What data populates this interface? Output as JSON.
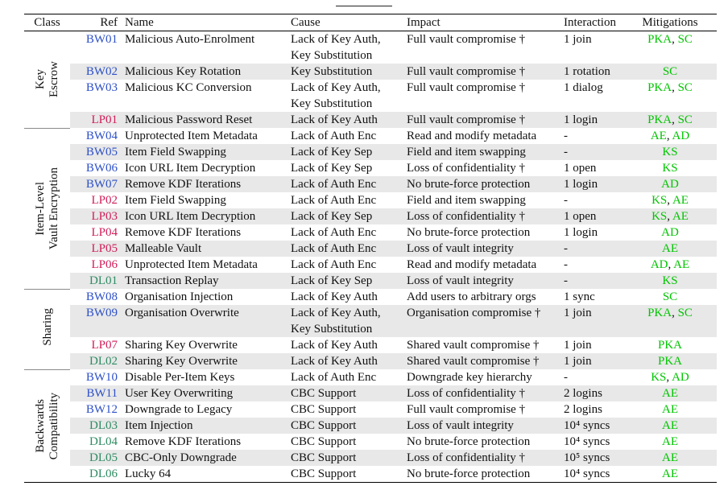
{
  "table": {
    "columns": [
      "Class",
      "Ref",
      "Name",
      "Cause",
      "Impact",
      "Interaction",
      "Mitigations"
    ],
    "colors": {
      "BW": "#2d50c8",
      "LP": "#d01c58",
      "DL": "#2e8b63",
      "mitigation": "#00c400",
      "stripe": "#e8e8e8"
    },
    "sections": [
      {
        "class_label_lines": [
          "Key",
          "Escrow"
        ],
        "rows": [
          {
            "ref": "BW01",
            "name": "Malicious Auto-Enrolment",
            "cause": "Lack of Key Auth,\nKey Substitution",
            "impact": "Full vault compromise †",
            "interaction": "1 join",
            "mitigations": [
              "PKA",
              "SC"
            ]
          },
          {
            "ref": "BW02",
            "name": "Malicious Key Rotation",
            "cause": "Key Substitution",
            "impact": "Full vault compromise †",
            "interaction": "1 rotation",
            "mitigations": [
              "SC"
            ]
          },
          {
            "ref": "BW03",
            "name": "Malicious KC Conversion",
            "cause": "Lack of Key Auth,\nKey Substitution",
            "impact": "Full vault compromise †",
            "interaction": "1 dialog",
            "mitigations": [
              "PKA",
              "SC"
            ]
          },
          {
            "ref": "LP01",
            "name": "Malicious Password Reset",
            "cause": "Lack of Key Auth",
            "impact": "Full vault compromise †",
            "interaction": "1 login",
            "mitigations": [
              "PKA",
              "SC"
            ]
          }
        ]
      },
      {
        "class_label_lines": [
          "Item-Level",
          "Vault Encryption"
        ],
        "rows": [
          {
            "ref": "BW04",
            "name": "Unprotected Item Metadata",
            "cause": "Lack of Auth Enc",
            "impact": "Read and modify metadata",
            "interaction": "-",
            "mitigations": [
              "AE",
              "AD"
            ]
          },
          {
            "ref": "BW05",
            "name": "Item Field Swapping",
            "cause": "Lack of Key Sep",
            "impact": "Field and item swapping",
            "interaction": "-",
            "mitigations": [
              "KS"
            ]
          },
          {
            "ref": "BW06",
            "name": "Icon URL Item Decryption",
            "cause": "Lack of Key Sep",
            "impact": "Loss of confidentiality †",
            "interaction": "1 open",
            "mitigations": [
              "KS"
            ]
          },
          {
            "ref": "BW07",
            "name": "Remove KDF Iterations",
            "cause": "Lack of Auth Enc",
            "impact": "No brute-force protection",
            "interaction": "1 login",
            "mitigations": [
              "AD"
            ]
          },
          {
            "ref": "LP02",
            "name": "Item Field Swapping",
            "cause": "Lack of Auth Enc",
            "impact": "Field and item swapping",
            "interaction": "-",
            "mitigations": [
              "KS",
              "AE"
            ]
          },
          {
            "ref": "LP03",
            "name": "Icon URL Item Decryption",
            "cause": "Lack of Key Sep",
            "impact": "Loss of confidentiality †",
            "interaction": "1 open",
            "mitigations": [
              "KS",
              "AE"
            ]
          },
          {
            "ref": "LP04",
            "name": "Remove KDF Iterations",
            "cause": "Lack of Auth Enc",
            "impact": "No brute-force protection",
            "interaction": "1 login",
            "mitigations": [
              "AD"
            ]
          },
          {
            "ref": "LP05",
            "name": "Malleable Vault",
            "cause": "Lack of Auth Enc",
            "impact": "Loss of vault integrity",
            "interaction": "-",
            "mitigations": [
              "AE"
            ]
          },
          {
            "ref": "LP06",
            "name": "Unprotected Item Metadata",
            "cause": "Lack of Auth Enc",
            "impact": "Read and modify metadata",
            "interaction": "-",
            "mitigations": [
              "AD",
              "AE"
            ]
          },
          {
            "ref": "DL01",
            "name": "Transaction Replay",
            "cause": "Lack of Key Sep",
            "impact": "Loss of vault integrity",
            "interaction": "-",
            "mitigations": [
              "KS"
            ]
          }
        ]
      },
      {
        "class_label_lines": [
          "Sharing"
        ],
        "rows": [
          {
            "ref": "BW08",
            "name": "Organisation Injection",
            "cause": "Lack of Key Auth",
            "impact": "Add users to arbitrary orgs",
            "interaction": "1 sync",
            "mitigations": [
              "SC"
            ]
          },
          {
            "ref": "BW09",
            "name": "Organisation Overwrite",
            "cause": "Lack of Key Auth,\nKey Substitution",
            "impact": "Organisation compromise †",
            "interaction": "1 join",
            "mitigations": [
              "PKA",
              "SC"
            ]
          },
          {
            "ref": "LP07",
            "name": "Sharing Key Overwrite",
            "cause": "Lack of Key Auth",
            "impact": "Shared vault compromise †",
            "interaction": "1 join",
            "mitigations": [
              "PKA"
            ]
          },
          {
            "ref": "DL02",
            "name": "Sharing Key Overwrite",
            "cause": "Lack of Key Auth",
            "impact": "Shared vault compromise †",
            "interaction": "1 join",
            "mitigations": [
              "PKA"
            ]
          }
        ]
      },
      {
        "class_label_lines": [
          "Backwards",
          "Compatibility"
        ],
        "rows": [
          {
            "ref": "BW10",
            "name": "Disable Per-Item Keys",
            "cause": "Lack of Auth Enc",
            "impact": "Downgrade key hierarchy",
            "interaction": "-",
            "mitigations": [
              "KS",
              "AD"
            ]
          },
          {
            "ref": "BW11",
            "name": "User Key Overwriting",
            "cause": "CBC Support",
            "impact": "Loss of confidentiality †",
            "interaction": "2 logins",
            "mitigations": [
              "AE"
            ]
          },
          {
            "ref": "BW12",
            "name": "Downgrade to Legacy",
            "cause": "CBC Support",
            "impact": "Full vault compromise †",
            "interaction": "2 logins",
            "mitigations": [
              "AE"
            ]
          },
          {
            "ref": "DL03",
            "name": "Item Injection",
            "cause": "CBC Support",
            "impact": "Loss of vault integrity",
            "interaction": "10⁴ syncs",
            "mitigations": [
              "AE"
            ]
          },
          {
            "ref": "DL04",
            "name": "Remove KDF Iterations",
            "cause": "CBC Support",
            "impact": "No brute-force protection",
            "interaction": "10⁴ syncs",
            "mitigations": [
              "AE"
            ]
          },
          {
            "ref": "DL05",
            "name": "CBC-Only Downgrade",
            "cause": "CBC Support",
            "impact": "Loss of confidentiality †",
            "interaction": "10⁵ syncs",
            "mitigations": [
              "AE"
            ]
          },
          {
            "ref": "DL06",
            "name": "Lucky 64",
            "cause": "CBC Support",
            "impact": "No brute-force protection",
            "interaction": "10⁴ syncs",
            "mitigations": [
              "AE"
            ]
          }
        ]
      }
    ]
  }
}
